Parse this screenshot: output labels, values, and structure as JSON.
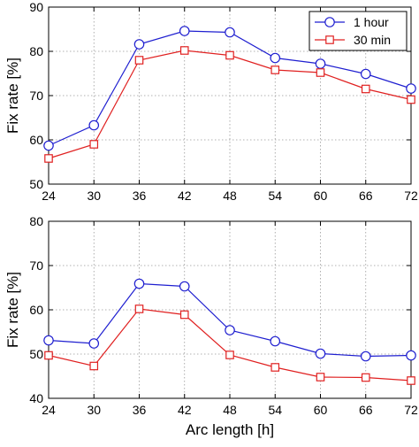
{
  "chart_data": [
    {
      "type": "line",
      "x": [
        24,
        30,
        36,
        42,
        48,
        54,
        60,
        66,
        72
      ],
      "xlim": [
        24,
        72
      ],
      "ylim": [
        50,
        90
      ],
      "xticks": [
        "24",
        "30",
        "36",
        "42",
        "48",
        "54",
        "60",
        "66",
        "72"
      ],
      "yticks": [
        "50",
        "60",
        "70",
        "80",
        "90"
      ],
      "xlabel": "",
      "ylabel": "Fix rate [%]",
      "grid": "dotted",
      "legend": "top-right",
      "series": [
        {
          "name": "1 hour",
          "color": "#1f1fd0",
          "marker": "circle",
          "values": [
            58.7,
            63.3,
            81.6,
            84.6,
            84.3,
            78.5,
            77.2,
            74.9,
            71.6
          ]
        },
        {
          "name": "30 min",
          "color": "#e02020",
          "marker": "square",
          "values": [
            55.8,
            59.0,
            78.0,
            80.2,
            79.1,
            75.8,
            75.2,
            71.5,
            69.1
          ]
        }
      ]
    },
    {
      "type": "line",
      "x": [
        24,
        30,
        36,
        42,
        48,
        54,
        60,
        66,
        72
      ],
      "xlim": [
        24,
        72
      ],
      "ylim": [
        40,
        80
      ],
      "xticks": [
        "24",
        "30",
        "36",
        "42",
        "48",
        "54",
        "60",
        "66",
        "72"
      ],
      "yticks": [
        "40",
        "50",
        "60",
        "70",
        "80"
      ],
      "xlabel": "Arc length [h]",
      "ylabel": "Fix rate [%]",
      "grid": "dotted",
      "legend": "none",
      "series": [
        {
          "name": "1 hour",
          "color": "#1f1fd0",
          "marker": "circle",
          "values": [
            53.1,
            52.4,
            65.9,
            65.3,
            55.4,
            52.9,
            50.1,
            49.5,
            49.7
          ]
        },
        {
          "name": "30 min",
          "color": "#e02020",
          "marker": "square",
          "values": [
            49.7,
            47.3,
            60.2,
            58.9,
            49.8,
            47.0,
            44.8,
            44.7,
            44.0
          ]
        }
      ]
    }
  ]
}
